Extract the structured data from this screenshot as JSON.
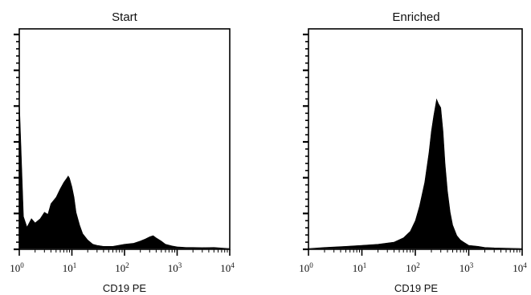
{
  "chart_data": [
    {
      "type": "area",
      "title": "Start",
      "xlabel": "CD19 PE",
      "ylabel": "",
      "x_scale": "log",
      "xlim": [
        1,
        10000
      ],
      "x_ticks": [
        {
          "base": "10",
          "exp": "0",
          "value": 1
        },
        {
          "base": "10",
          "exp": "1",
          "value": 10
        },
        {
          "base": "10",
          "exp": "2",
          "value": 100
        },
        {
          "base": "10",
          "exp": "3",
          "value": 1000
        },
        {
          "base": "10",
          "exp": "4",
          "value": 10000
        }
      ],
      "ylim": [
        0,
        1
      ],
      "grid": false,
      "fill_color": "#000000",
      "x": [
        1.0,
        1.2,
        1.4,
        1.7,
        2.0,
        2.5,
        3.0,
        3.5,
        4.0,
        5.0,
        6.0,
        7.0,
        8.0,
        8.5,
        9.0,
        10.0,
        11.0,
        12.0,
        14.0,
        16.0,
        20.0,
        25.0,
        30.0,
        40.0,
        60.0,
        100.0,
        150.0,
        200.0,
        250.0,
        300.0,
        350.0,
        400.0,
        500.0,
        600.0,
        800.0,
        1000.0,
        1500.0,
        2000.0,
        3000.0,
        5000.0,
        10000.0
      ],
      "values": [
        0.7,
        0.15,
        0.1,
        0.14,
        0.12,
        0.14,
        0.17,
        0.16,
        0.21,
        0.24,
        0.28,
        0.31,
        0.33,
        0.34,
        0.33,
        0.29,
        0.24,
        0.17,
        0.11,
        0.07,
        0.04,
        0.02,
        0.015,
        0.01,
        0.01,
        0.02,
        0.025,
        0.035,
        0.045,
        0.055,
        0.06,
        0.05,
        0.035,
        0.02,
        0.012,
        0.008,
        0.005,
        0.005,
        0.004,
        0.005,
        0.0
      ]
    },
    {
      "type": "area",
      "title": "Enriched",
      "xlabel": "CD19 PE",
      "ylabel": "",
      "x_scale": "log",
      "xlim": [
        1,
        10000
      ],
      "x_ticks": [
        {
          "base": "10",
          "exp": "0",
          "value": 1
        },
        {
          "base": "10",
          "exp": "1",
          "value": 10
        },
        {
          "base": "10",
          "exp": "2",
          "value": 100
        },
        {
          "base": "10",
          "exp": "3",
          "value": 1000
        },
        {
          "base": "10",
          "exp": "4",
          "value": 10000
        }
      ],
      "ylim": [
        0,
        1
      ],
      "grid": false,
      "fill_color": "#000000",
      "x": [
        1.0,
        2.0,
        5.0,
        10.0,
        20.0,
        40.0,
        60.0,
        80.0,
        100.0,
        120.0,
        150.0,
        180.0,
        200.0,
        220.0,
        250.0,
        270.0,
        300.0,
        330.0,
        360.0,
        400.0,
        450.0,
        500.0,
        600.0,
        700.0,
        800.0,
        1000.0,
        1500.0,
        2000.0,
        3000.0,
        5000.0,
        10000.0
      ],
      "values": [
        0.0,
        0.005,
        0.01,
        0.015,
        0.02,
        0.03,
        0.05,
        0.08,
        0.13,
        0.2,
        0.31,
        0.45,
        0.55,
        0.62,
        0.7,
        0.68,
        0.66,
        0.55,
        0.4,
        0.27,
        0.17,
        0.11,
        0.06,
        0.04,
        0.03,
        0.015,
        0.01,
        0.005,
        0.003,
        0.002,
        0.0
      ]
    }
  ]
}
